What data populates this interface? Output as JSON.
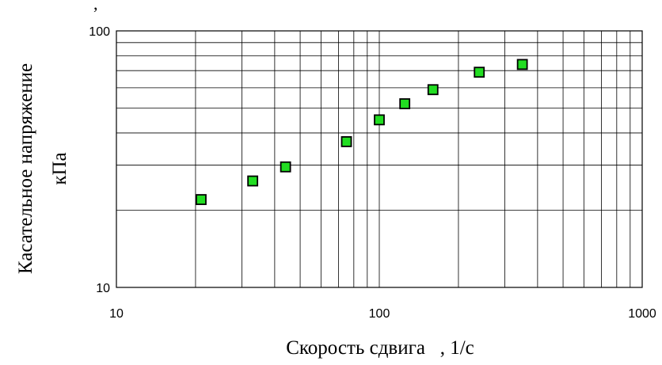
{
  "chart_data": {
    "type": "scatter",
    "xlabel": "Скорость сдвига   , 1/с",
    "ylabel_line1": "Касательное напряжение",
    "ylabel_line2": "кПа",
    "corner_mark": ",",
    "x_scale": "log",
    "y_scale": "log",
    "xlim": [
      10,
      1000
    ],
    "ylim": [
      10,
      100
    ],
    "x_ticks": [
      10,
      100,
      1000
    ],
    "x_tick_labels": [
      "10",
      "100",
      "1000"
    ],
    "y_ticks": [
      10,
      100
    ],
    "y_tick_labels": [
      "10",
      "100"
    ],
    "grid": "major and minor",
    "marker": "square",
    "marker_color": "#22dd22",
    "marker_edge_color": "#000000",
    "series": [
      {
        "x": [
          21,
          33,
          44,
          75,
          100,
          125,
          160,
          240,
          350
        ],
        "y": [
          22,
          26,
          29.5,
          37,
          45,
          52,
          59,
          69,
          74
        ]
      }
    ]
  }
}
